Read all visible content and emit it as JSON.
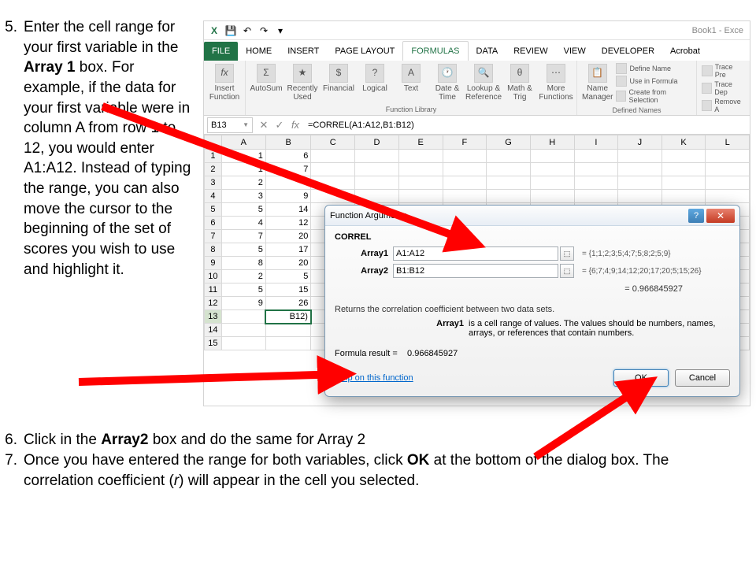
{
  "instructions": {
    "item5_num": "5.",
    "item5_pre": "Enter the cell range for your first variable in the ",
    "item5_bold": "Array 1",
    "item5_post": " box. For example, if the data for your first variable were in column A from row 1 to 12, you would enter A1:A12. Instead of typing the range, you can also move the cursor to the beginning of the set of scores you wish to use and highlight it.",
    "item6_num": "6.",
    "item6_pre": "Click in the ",
    "item6_bold": "Array2",
    "item6_post": " box and do the same for Array 2",
    "item7_num": "7.",
    "item7_pre": "Once you have entered the range for both variables, click ",
    "item7_bold": "OK",
    "item7_mid": " at the bottom of the dialog box. The correlation coefficient (",
    "item7_italic": "r",
    "item7_post": ") will appear in the cell you selected."
  },
  "qat": {
    "title": "Book1 - Exce"
  },
  "tabs": [
    "FILE",
    "HOME",
    "INSERT",
    "PAGE LAYOUT",
    "FORMULAS",
    "DATA",
    "REVIEW",
    "VIEW",
    "DEVELOPER",
    "Acrobat"
  ],
  "ribbon": {
    "g1_label": "",
    "g2_label": "Function Library",
    "g3_label": "",
    "g4_label": "Defined Names",
    "insert_fn": "Insert Function",
    "autosum": "AutoSum",
    "recently": "Recently Used",
    "financial": "Financial",
    "logical": "Logical",
    "text": "Text",
    "datetime": "Date & Time",
    "lookup": "Lookup & Reference",
    "math": "Math & Trig",
    "more": "More Functions",
    "name_mgr": "Name Manager",
    "def_name": "Define Name",
    "use_formula": "Use in Formula",
    "create_sel": "Create from Selection",
    "trace_pre": "Trace Pre",
    "trace_dep": "Trace Dep",
    "remove": "Remove A"
  },
  "formula_bar": {
    "name_box": "B13",
    "formula": "=CORREL(A1:A12,B1:B12)",
    "fx": "fx"
  },
  "sheet": {
    "columns": [
      "A",
      "B",
      "C",
      "D",
      "E",
      "F",
      "G",
      "H",
      "I",
      "J",
      "K",
      "L"
    ],
    "rows": [
      {
        "n": "1",
        "a": "1",
        "b": "6"
      },
      {
        "n": "2",
        "a": "1",
        "b": "7"
      },
      {
        "n": "3",
        "a": "2",
        "b": "4"
      },
      {
        "n": "4",
        "a": "3",
        "b": "9"
      },
      {
        "n": "5",
        "a": "5",
        "b": "14"
      },
      {
        "n": "6",
        "a": "4",
        "b": "12"
      },
      {
        "n": "7",
        "a": "7",
        "b": "20"
      },
      {
        "n": "8",
        "a": "5",
        "b": "17"
      },
      {
        "n": "9",
        "a": "8",
        "b": "20"
      },
      {
        "n": "10",
        "a": "2",
        "b": "5"
      },
      {
        "n": "11",
        "a": "5",
        "b": "15"
      },
      {
        "n": "12",
        "a": "9",
        "b": "26"
      },
      {
        "n": "13",
        "a": "",
        "b": "B12)"
      },
      {
        "n": "14",
        "a": "",
        "b": ""
      },
      {
        "n": "15",
        "a": "",
        "b": ""
      }
    ]
  },
  "dialog": {
    "title": "Function Arguments",
    "fn_name": "CORREL",
    "array1_label": "Array1",
    "array1_value": "A1:A12",
    "array1_result": "= {1;1;2;3;5;4;7;5;8;2;5;9}",
    "array2_label": "Array2",
    "array2_value": "B1:B12",
    "array2_result": "= {6;7;4;9;14;12;20;17;20;5;15;26}",
    "calc_result": "= 0.966845927",
    "desc": "Returns the correlation coefficient between two data sets.",
    "arg_name": "Array1",
    "arg_desc": "is a cell range of values. The values should be numbers, names, arrays, or references that contain numbers.",
    "formula_result_label": "Formula result =",
    "formula_result": "0.966845927",
    "help_link": "Help on this function",
    "ok": "OK",
    "cancel": "Cancel"
  },
  "arrows": {
    "stroke": "#ff0000",
    "width": 10
  }
}
